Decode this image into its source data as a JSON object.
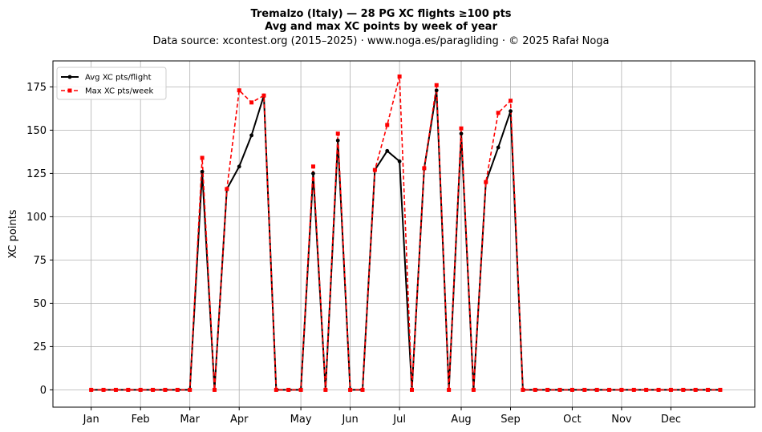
{
  "chart_data": {
    "type": "line",
    "title_line1": "Tremalzo (Italy)  —  28 PG XC flights ≥100 pts",
    "title_line2": "Avg and max XC points by week of year",
    "subtitle": "Data source: xcontest.org (2015–2025)  ·  www.noga.es/paragliding  ·  © 2025 Rafał Noga",
    "xlabel": "",
    "ylabel": "XC points",
    "ylim": [
      -10,
      190
    ],
    "yticks": [
      0,
      25,
      50,
      75,
      100,
      125,
      150,
      175
    ],
    "grid": true,
    "legend_position": "top-left",
    "x_tick_labels": [
      {
        "label": "Jan",
        "week": 1
      },
      {
        "label": "Feb",
        "week": 5
      },
      {
        "label": "Mar",
        "week": 9
      },
      {
        "label": "Apr",
        "week": 13
      },
      {
        "label": "May",
        "week": 18
      },
      {
        "label": "Jun",
        "week": 22
      },
      {
        "label": "Jul",
        "week": 26
      },
      {
        "label": "Aug",
        "week": 31
      },
      {
        "label": "Sep",
        "week": 35
      },
      {
        "label": "Oct",
        "week": 40
      },
      {
        "label": "Nov",
        "week": 44
      },
      {
        "label": "Dec",
        "week": 48
      }
    ],
    "x": [
      1,
      2,
      3,
      4,
      5,
      6,
      7,
      8,
      9,
      10,
      11,
      12,
      13,
      14,
      15,
      16,
      17,
      18,
      19,
      20,
      21,
      22,
      23,
      24,
      25,
      26,
      27,
      28,
      29,
      30,
      31,
      32,
      33,
      34,
      35,
      36,
      37,
      38,
      39,
      40,
      41,
      42,
      43,
      44,
      45,
      46,
      47,
      48,
      49,
      50,
      51,
      52
    ],
    "series": [
      {
        "name": "Avg XC pts/flight",
        "color": "#000000",
        "values": [
          0,
          0,
          0,
          0,
          0,
          0,
          0,
          0,
          0,
          126,
          0,
          116,
          129,
          147,
          170,
          0,
          0,
          0,
          125,
          0,
          144,
          0,
          0,
          127,
          138,
          132,
          0,
          128,
          173,
          0,
          148,
          0,
          120,
          140,
          161,
          0,
          0,
          0,
          0,
          0,
          0,
          0,
          0,
          0,
          0,
          0,
          0,
          0,
          0,
          0,
          0,
          0
        ]
      },
      {
        "name": "Max XC pts/week",
        "color": "#ff0000",
        "values": [
          0,
          0,
          0,
          0,
          0,
          0,
          0,
          0,
          0,
          134,
          0,
          116,
          173,
          166,
          170,
          0,
          0,
          0,
          129,
          0,
          148,
          0,
          0,
          127,
          153,
          181,
          0,
          128,
          176,
          0,
          151,
          0,
          120,
          160,
          167,
          0,
          0,
          0,
          0,
          0,
          0,
          0,
          0,
          0,
          0,
          0,
          0,
          0,
          0,
          0,
          0,
          0
        ]
      }
    ]
  }
}
